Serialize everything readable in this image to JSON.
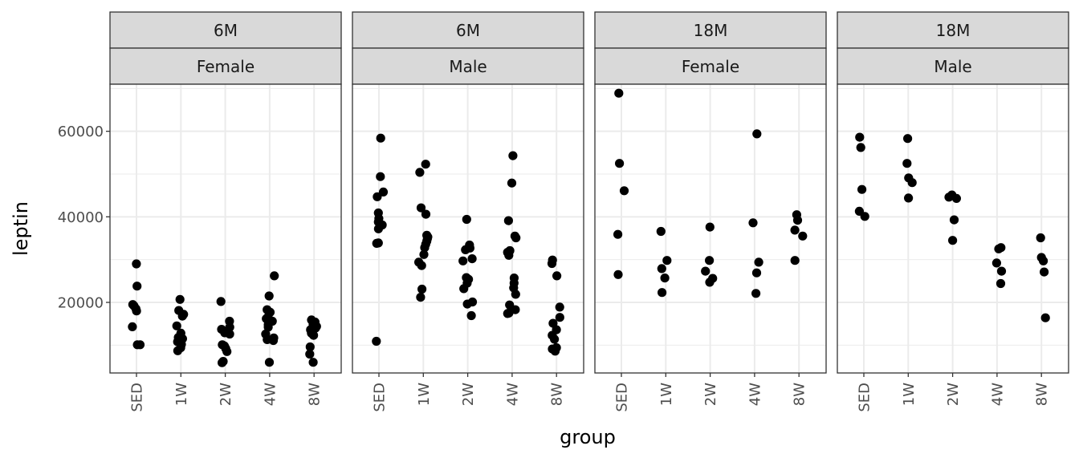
{
  "chart_data": {
    "type": "scatter",
    "ylabel": "leptin",
    "xlabel": "group",
    "categories": [
      "SED",
      "1W",
      "2W",
      "4W",
      "8W"
    ],
    "y_ticks": [
      "20000",
      "40000",
      "60000"
    ],
    "ylim": [
      3500,
      71000
    ],
    "y_minor_gridlines": [
      10000,
      30000,
      50000,
      70000
    ],
    "grid": true,
    "point_color": "#000000",
    "strip_fill": "#d9d9d9",
    "panels": [
      {
        "strip_top": "6M",
        "strip_bottom": "Female",
        "points": [
          {
            "group": "SED",
            "y": 29000
          },
          {
            "group": "SED",
            "y": 23800
          },
          {
            "group": "SED",
            "y": 19500
          },
          {
            "group": "SED",
            "y": 19200
          },
          {
            "group": "SED",
            "y": 18500
          },
          {
            "group": "SED",
            "y": 18000
          },
          {
            "group": "SED",
            "y": 14300
          },
          {
            "group": "SED",
            "y": 10100
          },
          {
            "group": "SED",
            "y": 10100
          },
          {
            "group": "1W",
            "y": 20700
          },
          {
            "group": "1W",
            "y": 18100
          },
          {
            "group": "1W",
            "y": 17200
          },
          {
            "group": "1W",
            "y": 16800
          },
          {
            "group": "1W",
            "y": 14500
          },
          {
            "group": "1W",
            "y": 12800
          },
          {
            "group": "1W",
            "y": 11800
          },
          {
            "group": "1W",
            "y": 11500
          },
          {
            "group": "1W",
            "y": 10800
          },
          {
            "group": "1W",
            "y": 10200
          },
          {
            "group": "1W",
            "y": 9400
          },
          {
            "group": "1W",
            "y": 8700
          },
          {
            "group": "2W",
            "y": 20200
          },
          {
            "group": "2W",
            "y": 15600
          },
          {
            "group": "2W",
            "y": 14200
          },
          {
            "group": "2W",
            "y": 13700
          },
          {
            "group": "2W",
            "y": 12900
          },
          {
            "group": "2W",
            "y": 12600
          },
          {
            "group": "2W",
            "y": 10100
          },
          {
            "group": "2W",
            "y": 9800
          },
          {
            "group": "2W",
            "y": 9200
          },
          {
            "group": "2W",
            "y": 8500
          },
          {
            "group": "2W",
            "y": 6200
          },
          {
            "group": "2W",
            "y": 5900
          },
          {
            "group": "4W",
            "y": 26200
          },
          {
            "group": "4W",
            "y": 21500
          },
          {
            "group": "4W",
            "y": 18300
          },
          {
            "group": "4W",
            "y": 17700
          },
          {
            "group": "4W",
            "y": 16600
          },
          {
            "group": "4W",
            "y": 16200
          },
          {
            "group": "4W",
            "y": 15600
          },
          {
            "group": "4W",
            "y": 14800
          },
          {
            "group": "4W",
            "y": 14200
          },
          {
            "group": "4W",
            "y": 12600
          },
          {
            "group": "4W",
            "y": 11700
          },
          {
            "group": "4W",
            "y": 11300
          },
          {
            "group": "4W",
            "y": 11100
          },
          {
            "group": "4W",
            "y": 6000
          },
          {
            "group": "8W",
            "y": 15900
          },
          {
            "group": "8W",
            "y": 15400
          },
          {
            "group": "8W",
            "y": 14900
          },
          {
            "group": "8W",
            "y": 14400
          },
          {
            "group": "8W",
            "y": 14000
          },
          {
            "group": "8W",
            "y": 13600
          },
          {
            "group": "8W",
            "y": 12800
          },
          {
            "group": "8W",
            "y": 12300
          },
          {
            "group": "8W",
            "y": 9600
          },
          {
            "group": "8W",
            "y": 7900
          },
          {
            "group": "8W",
            "y": 6000
          }
        ]
      },
      {
        "strip_top": "6M",
        "strip_bottom": "Male",
        "points": [
          {
            "group": "SED",
            "y": 58400
          },
          {
            "group": "SED",
            "y": 49400
          },
          {
            "group": "SED",
            "y": 45800
          },
          {
            "group": "SED",
            "y": 44700
          },
          {
            "group": "SED",
            "y": 40900
          },
          {
            "group": "SED",
            "y": 39600
          },
          {
            "group": "SED",
            "y": 38800
          },
          {
            "group": "SED",
            "y": 38100
          },
          {
            "group": "SED",
            "y": 37200
          },
          {
            "group": "SED",
            "y": 33900
          },
          {
            "group": "SED",
            "y": 33800
          },
          {
            "group": "SED",
            "y": 10900
          },
          {
            "group": "1W",
            "y": 52300
          },
          {
            "group": "1W",
            "y": 50400
          },
          {
            "group": "1W",
            "y": 42100
          },
          {
            "group": "1W",
            "y": 40600
          },
          {
            "group": "1W",
            "y": 35700
          },
          {
            "group": "1W",
            "y": 35300
          },
          {
            "group": "1W",
            "y": 34900
          },
          {
            "group": "1W",
            "y": 34300
          },
          {
            "group": "1W",
            "y": 33600
          },
          {
            "group": "1W",
            "y": 32800
          },
          {
            "group": "1W",
            "y": 31200
          },
          {
            "group": "1W",
            "y": 29400
          },
          {
            "group": "1W",
            "y": 28600
          },
          {
            "group": "1W",
            "y": 23100
          },
          {
            "group": "1W",
            "y": 21200
          },
          {
            "group": "2W",
            "y": 39400
          },
          {
            "group": "2W",
            "y": 33400
          },
          {
            "group": "2W",
            "y": 32700
          },
          {
            "group": "2W",
            "y": 32300
          },
          {
            "group": "2W",
            "y": 30200
          },
          {
            "group": "2W",
            "y": 29700
          },
          {
            "group": "2W",
            "y": 25800
          },
          {
            "group": "2W",
            "y": 25400
          },
          {
            "group": "2W",
            "y": 24500
          },
          {
            "group": "2W",
            "y": 23200
          },
          {
            "group": "2W",
            "y": 20100
          },
          {
            "group": "2W",
            "y": 19600
          },
          {
            "group": "2W",
            "y": 16900
          },
          {
            "group": "4W",
            "y": 54300
          },
          {
            "group": "4W",
            "y": 47900
          },
          {
            "group": "4W",
            "y": 39100
          },
          {
            "group": "4W",
            "y": 35500
          },
          {
            "group": "4W",
            "y": 35100
          },
          {
            "group": "4W",
            "y": 32100
          },
          {
            "group": "4W",
            "y": 31700
          },
          {
            "group": "4W",
            "y": 31000
          },
          {
            "group": "4W",
            "y": 25700
          },
          {
            "group": "4W",
            "y": 24500
          },
          {
            "group": "4W",
            "y": 23400
          },
          {
            "group": "4W",
            "y": 21900
          },
          {
            "group": "4W",
            "y": 19400
          },
          {
            "group": "4W",
            "y": 18300
          },
          {
            "group": "4W",
            "y": 17500
          },
          {
            "group": "4W",
            "y": 17400
          },
          {
            "group": "8W",
            "y": 29900
          },
          {
            "group": "8W",
            "y": 29100
          },
          {
            "group": "8W",
            "y": 26200
          },
          {
            "group": "8W",
            "y": 18900
          },
          {
            "group": "8W",
            "y": 16500
          },
          {
            "group": "8W",
            "y": 15100
          },
          {
            "group": "8W",
            "y": 13600
          },
          {
            "group": "8W",
            "y": 12300
          },
          {
            "group": "8W",
            "y": 11400
          },
          {
            "group": "8W",
            "y": 9400
          },
          {
            "group": "8W",
            "y": 9100
          },
          {
            "group": "8W",
            "y": 8600
          }
        ]
      },
      {
        "strip_top": "18M",
        "strip_bottom": "Female",
        "points": [
          {
            "group": "SED",
            "y": 68900
          },
          {
            "group": "SED",
            "y": 52500
          },
          {
            "group": "SED",
            "y": 46100
          },
          {
            "group": "SED",
            "y": 35900
          },
          {
            "group": "SED",
            "y": 26500
          },
          {
            "group": "1W",
            "y": 36600
          },
          {
            "group": "1W",
            "y": 29800
          },
          {
            "group": "1W",
            "y": 27900
          },
          {
            "group": "1W",
            "y": 25700
          },
          {
            "group": "1W",
            "y": 22300
          },
          {
            "group": "2W",
            "y": 37600
          },
          {
            "group": "2W",
            "y": 29800
          },
          {
            "group": "2W",
            "y": 27300
          },
          {
            "group": "2W",
            "y": 25600
          },
          {
            "group": "2W",
            "y": 24700
          },
          {
            "group": "4W",
            "y": 59400
          },
          {
            "group": "4W",
            "y": 38600
          },
          {
            "group": "4W",
            "y": 29400
          },
          {
            "group": "4W",
            "y": 26900
          },
          {
            "group": "4W",
            "y": 22100
          },
          {
            "group": "8W",
            "y": 40500
          },
          {
            "group": "8W",
            "y": 39200
          },
          {
            "group": "8W",
            "y": 36900
          },
          {
            "group": "8W",
            "y": 35500
          },
          {
            "group": "8W",
            "y": 29800
          }
        ]
      },
      {
        "strip_top": "18M",
        "strip_bottom": "Male",
        "points": [
          {
            "group": "SED",
            "y": 58600
          },
          {
            "group": "SED",
            "y": 56200
          },
          {
            "group": "SED",
            "y": 46400
          },
          {
            "group": "SED",
            "y": 41300
          },
          {
            "group": "SED",
            "y": 40100
          },
          {
            "group": "1W",
            "y": 58300
          },
          {
            "group": "1W",
            "y": 52500
          },
          {
            "group": "1W",
            "y": 49100
          },
          {
            "group": "1W",
            "y": 48000
          },
          {
            "group": "1W",
            "y": 44400
          },
          {
            "group": "2W",
            "y": 45100
          },
          {
            "group": "2W",
            "y": 44600
          },
          {
            "group": "2W",
            "y": 44300
          },
          {
            "group": "2W",
            "y": 39300
          },
          {
            "group": "2W",
            "y": 34500
          },
          {
            "group": "4W",
            "y": 32800
          },
          {
            "group": "4W",
            "y": 32500
          },
          {
            "group": "4W",
            "y": 29200
          },
          {
            "group": "4W",
            "y": 27300
          },
          {
            "group": "4W",
            "y": 24400
          },
          {
            "group": "8W",
            "y": 35100
          },
          {
            "group": "8W",
            "y": 30500
          },
          {
            "group": "8W",
            "y": 29700
          },
          {
            "group": "8W",
            "y": 27100
          },
          {
            "group": "8W",
            "y": 16400
          }
        ]
      }
    ]
  }
}
